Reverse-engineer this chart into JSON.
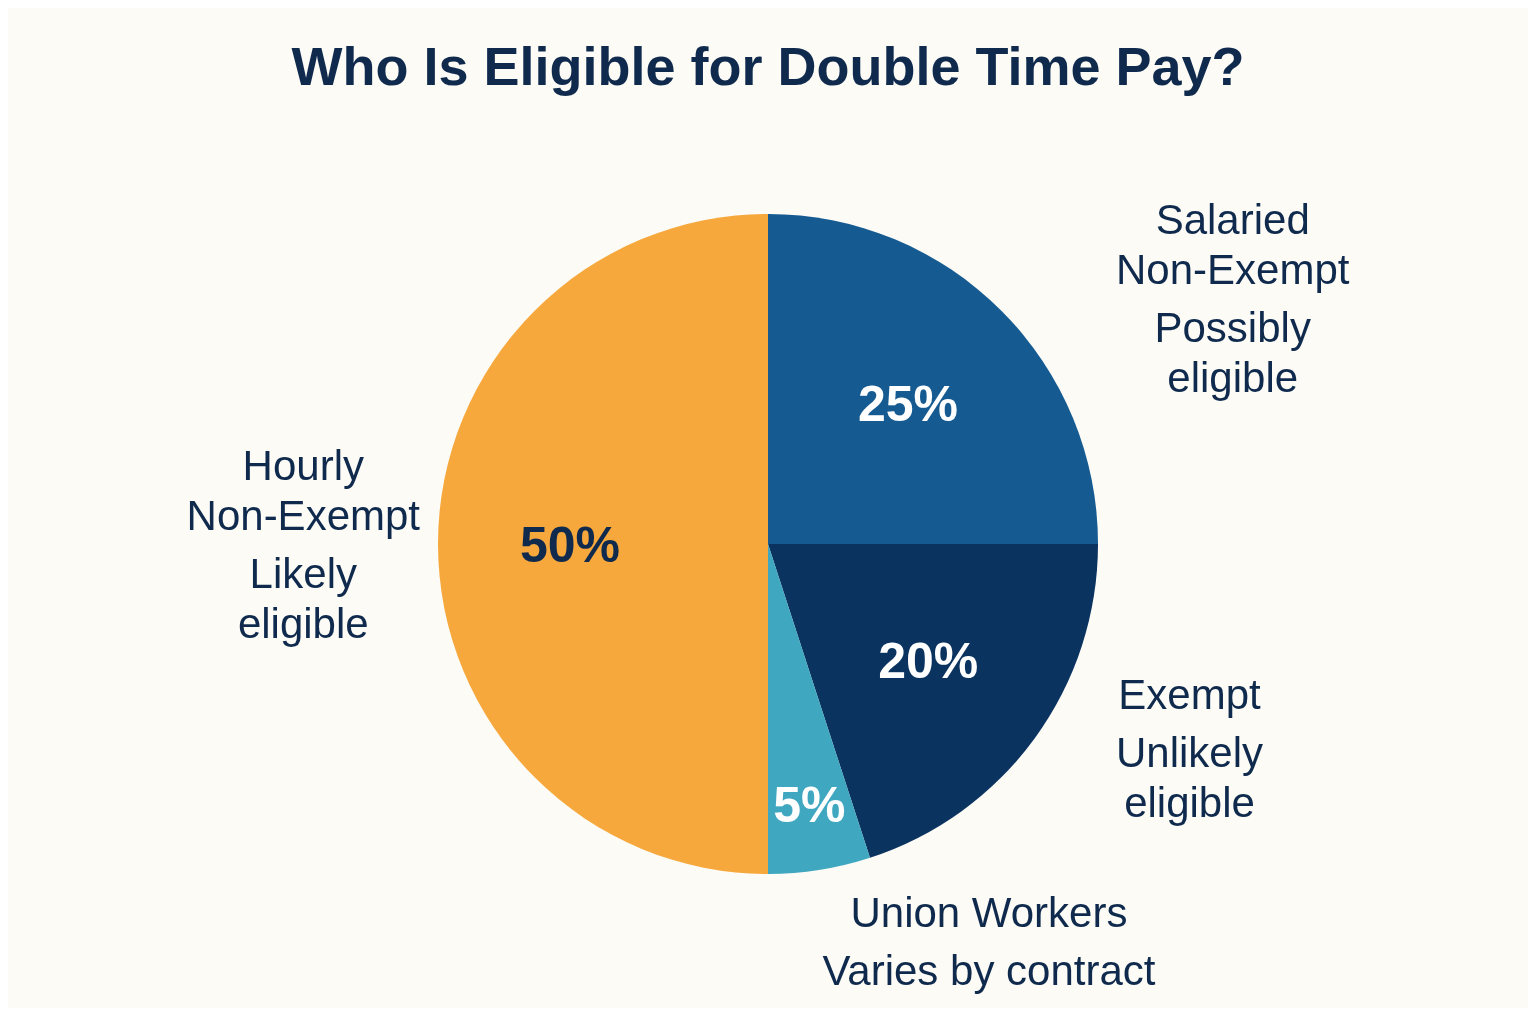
{
  "chart_data": {
    "type": "pie",
    "title": "Who Is Eligible for Double Time Pay?",
    "categories": [
      "Salaried Non-Exempt",
      "Exempt",
      "Union Workers",
      "Hourly Non-Exempt"
    ],
    "values": [
      25,
      20,
      5,
      50
    ],
    "colors": [
      "#155b92",
      "#0b3360",
      "#3fa7bf",
      "#f6a83c"
    ],
    "value_labels": [
      "25%",
      "20%",
      "5%",
      "50%"
    ],
    "annotations": [
      "Possibly eligible",
      "Unlikely eligible",
      "Varies by contract",
      "Likely eligible"
    ]
  }
}
